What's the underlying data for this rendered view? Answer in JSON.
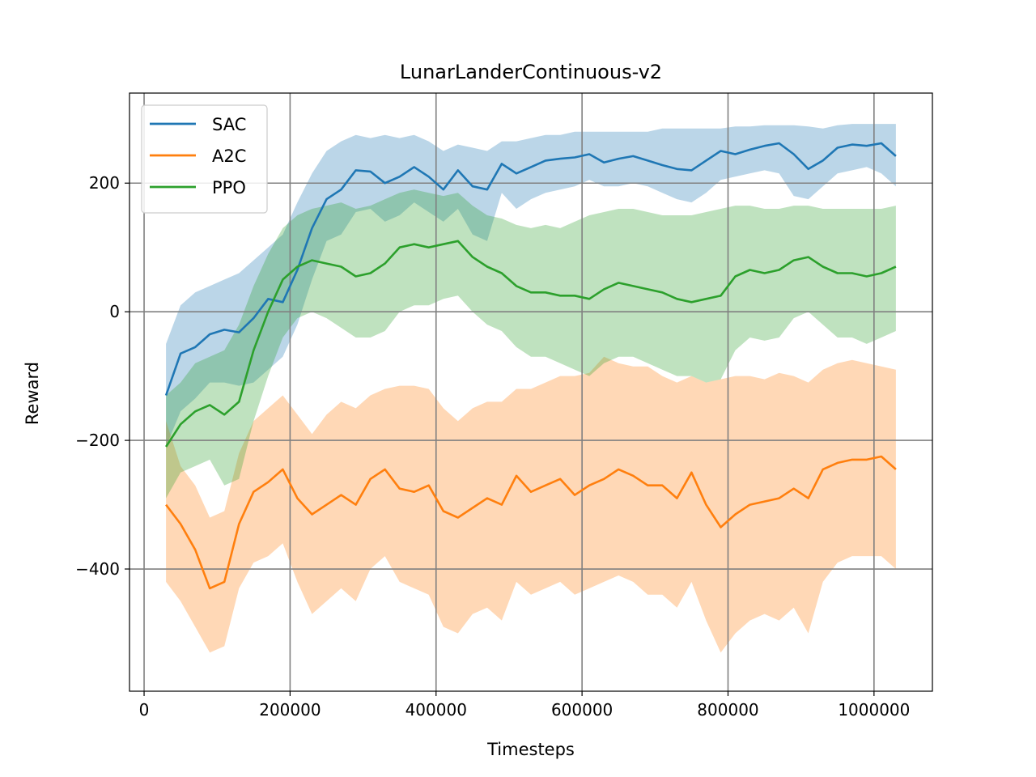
{
  "chart_data": {
    "type": "line",
    "title": "LunarLanderContinuous-v2",
    "xlabel": "Timesteps",
    "ylabel": "Reward",
    "xlim": [
      -20000,
      1080000
    ],
    "ylim": [
      -590,
      340
    ],
    "xticks": [
      0,
      200000,
      400000,
      600000,
      800000,
      1000000
    ],
    "xtick_labels": [
      "0",
      "200000",
      "400000",
      "600000",
      "800000",
      "1000000"
    ],
    "yticks": [
      -400,
      -200,
      0,
      200
    ],
    "ytick_labels": [
      "−400",
      "−200",
      "0",
      "200"
    ],
    "grid": true,
    "legend_position": "top-left",
    "series": [
      {
        "name": "SAC",
        "color": "#1f77b4",
        "x": [
          30000,
          50000,
          70000,
          90000,
          110000,
          130000,
          150000,
          170000,
          190000,
          210000,
          230000,
          250000,
          270000,
          290000,
          310000,
          330000,
          350000,
          370000,
          390000,
          410000,
          430000,
          450000,
          470000,
          490000,
          510000,
          530000,
          550000,
          570000,
          590000,
          610000,
          630000,
          650000,
          670000,
          690000,
          710000,
          730000,
          750000,
          770000,
          790000,
          810000,
          830000,
          850000,
          870000,
          890000,
          910000,
          930000,
          950000,
          970000,
          990000,
          1010000,
          1030000
        ],
        "mean": [
          -130,
          -65,
          -55,
          -35,
          -28,
          -32,
          -10,
          20,
          15,
          65,
          130,
          175,
          190,
          220,
          218,
          200,
          210,
          225,
          210,
          190,
          220,
          195,
          190,
          230,
          215,
          225,
          235,
          238,
          240,
          245,
          232,
          238,
          242,
          235,
          228,
          222,
          220,
          235,
          250,
          245,
          252,
          258,
          262,
          245,
          222,
          235,
          255,
          260,
          258,
          262,
          242
        ],
        "upper": [
          -50,
          10,
          30,
          40,
          50,
          60,
          80,
          100,
          120,
          170,
          215,
          250,
          265,
          275,
          270,
          275,
          270,
          275,
          265,
          250,
          260,
          255,
          250,
          265,
          265,
          270,
          275,
          275,
          280,
          280,
          280,
          280,
          280,
          280,
          285,
          285,
          285,
          285,
          285,
          288,
          288,
          290,
          290,
          290,
          288,
          285,
          290,
          292,
          292,
          292,
          292
        ],
        "lower": [
          -210,
          -155,
          -135,
          -110,
          -110,
          -115,
          -110,
          -90,
          -70,
          -20,
          50,
          110,
          120,
          155,
          160,
          140,
          150,
          170,
          155,
          140,
          160,
          120,
          110,
          185,
          160,
          175,
          185,
          190,
          195,
          205,
          195,
          195,
          200,
          195,
          185,
          175,
          170,
          185,
          205,
          210,
          215,
          220,
          215,
          180,
          175,
          195,
          215,
          220,
          225,
          215,
          195
        ]
      },
      {
        "name": "A2C",
        "color": "#ff7f0e",
        "x": [
          30000,
          50000,
          70000,
          90000,
          110000,
          130000,
          150000,
          170000,
          190000,
          210000,
          230000,
          250000,
          270000,
          290000,
          310000,
          330000,
          350000,
          370000,
          390000,
          410000,
          430000,
          450000,
          470000,
          490000,
          510000,
          530000,
          550000,
          570000,
          590000,
          610000,
          630000,
          650000,
          670000,
          690000,
          710000,
          730000,
          750000,
          770000,
          790000,
          810000,
          830000,
          850000,
          870000,
          890000,
          910000,
          930000,
          950000,
          970000,
          990000,
          1010000,
          1030000
        ],
        "mean": [
          -300,
          -330,
          -370,
          -430,
          -420,
          -330,
          -280,
          -265,
          -245,
          -290,
          -315,
          -300,
          -285,
          -300,
          -260,
          -245,
          -275,
          -280,
          -270,
          -310,
          -320,
          -305,
          -290,
          -300,
          -255,
          -280,
          -270,
          -260,
          -285,
          -270,
          -260,
          -245,
          -255,
          -270,
          -270,
          -290,
          -250,
          -300,
          -335,
          -315,
          -300,
          -295,
          -290,
          -275,
          -290,
          -245,
          -235,
          -230,
          -230,
          -225,
          -245
        ],
        "upper": [
          -170,
          -240,
          -270,
          -320,
          -310,
          -220,
          -170,
          -150,
          -130,
          -160,
          -190,
          -160,
          -140,
          -150,
          -130,
          -120,
          -115,
          -115,
          -120,
          -150,
          -170,
          -150,
          -140,
          -140,
          -120,
          -120,
          -110,
          -100,
          -100,
          -95,
          -70,
          -80,
          -85,
          -85,
          -100,
          -110,
          -100,
          -110,
          -105,
          -100,
          -100,
          -105,
          -95,
          -100,
          -110,
          -90,
          -80,
          -75,
          -80,
          -85,
          -90
        ],
        "lower": [
          -420,
          -450,
          -490,
          -530,
          -520,
          -430,
          -390,
          -380,
          -360,
          -420,
          -470,
          -450,
          -430,
          -450,
          -400,
          -380,
          -420,
          -430,
          -440,
          -490,
          -500,
          -470,
          -460,
          -480,
          -420,
          -440,
          -430,
          -420,
          -440,
          -430,
          -420,
          -410,
          -420,
          -440,
          -440,
          -460,
          -420,
          -480,
          -530,
          -500,
          -480,
          -470,
          -480,
          -460,
          -500,
          -420,
          -390,
          -380,
          -380,
          -380,
          -400
        ]
      },
      {
        "name": "PPO",
        "color": "#2ca02c",
        "x": [
          30000,
          50000,
          70000,
          90000,
          110000,
          130000,
          150000,
          170000,
          190000,
          210000,
          230000,
          250000,
          270000,
          290000,
          310000,
          330000,
          350000,
          370000,
          390000,
          410000,
          430000,
          450000,
          470000,
          490000,
          510000,
          530000,
          550000,
          570000,
          590000,
          610000,
          630000,
          650000,
          670000,
          690000,
          710000,
          730000,
          750000,
          770000,
          790000,
          810000,
          830000,
          850000,
          870000,
          890000,
          910000,
          930000,
          950000,
          970000,
          990000,
          1010000,
          1030000
        ],
        "mean": [
          -210,
          -175,
          -155,
          -145,
          -160,
          -140,
          -60,
          0,
          50,
          70,
          80,
          75,
          70,
          55,
          60,
          75,
          100,
          105,
          100,
          105,
          110,
          85,
          70,
          60,
          40,
          30,
          30,
          25,
          25,
          20,
          35,
          45,
          40,
          35,
          30,
          20,
          15,
          20,
          25,
          55,
          65,
          60,
          65,
          80,
          85,
          70,
          60,
          60,
          55,
          60,
          70
        ],
        "upper": [
          -130,
          -110,
          -80,
          -70,
          -60,
          -20,
          40,
          90,
          130,
          150,
          160,
          165,
          170,
          160,
          165,
          175,
          185,
          190,
          185,
          180,
          185,
          165,
          150,
          145,
          135,
          130,
          135,
          130,
          140,
          150,
          155,
          160,
          160,
          155,
          150,
          150,
          150,
          155,
          160,
          165,
          165,
          160,
          160,
          165,
          165,
          160,
          160,
          160,
          160,
          160,
          165
        ],
        "lower": [
          -290,
          -250,
          -240,
          -230,
          -270,
          -260,
          -170,
          -100,
          -40,
          -10,
          0,
          -10,
          -25,
          -40,
          -40,
          -30,
          0,
          10,
          10,
          20,
          25,
          0,
          -20,
          -30,
          -55,
          -70,
          -70,
          -80,
          -90,
          -100,
          -80,
          -70,
          -70,
          -80,
          -90,
          -100,
          -100,
          -110,
          -105,
          -60,
          -40,
          -45,
          -40,
          -10,
          0,
          -20,
          -40,
          -40,
          -50,
          -40,
          -30
        ]
      }
    ]
  }
}
